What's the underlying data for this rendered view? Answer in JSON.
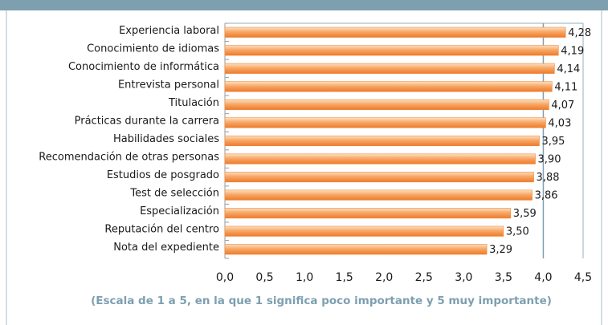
{
  "chart_data": {
    "type": "bar",
    "orientation": "horizontal",
    "caption": "(Escala de 1 a 5, en la que 1 significa poco importante y 5 muy importante)",
    "categories": [
      "Experiencia laboral",
      "Conocimiento de idiomas",
      "Conocimiento de informática",
      "Entrevista personal",
      "Titulación",
      "Prácticas durante la carrera",
      "Habilidades sociales",
      "Recomendación de otras personas",
      "Estudios de posgrado",
      "Test de selección",
      "Especialización",
      "Reputación del centro",
      "Nota del expediente"
    ],
    "values": [
      4.28,
      4.19,
      4.14,
      4.11,
      4.07,
      4.03,
      3.95,
      3.9,
      3.88,
      3.86,
      3.59,
      3.5,
      3.29
    ],
    "value_labels": [
      "4,28",
      "4,19",
      "4,14",
      "4,11",
      "4,07",
      "4,03",
      "3,95",
      "3,90",
      "3,88",
      "3,86",
      "3,59",
      "3,50",
      "3,29"
    ],
    "color": "#f08a3c",
    "xlim": [
      0,
      4.5
    ],
    "xticks": [
      {
        "value": 0,
        "label": "0,0"
      },
      {
        "value": 0.5,
        "label": "0,5"
      },
      {
        "value": 1,
        "label": "1,0"
      },
      {
        "value": 1.5,
        "label": "1,5"
      },
      {
        "value": 2,
        "label": "2,0"
      },
      {
        "value": 2.5,
        "label": "2,5"
      },
      {
        "value": 3,
        "label": "3,0"
      },
      {
        "value": 3.5,
        "label": "3,5"
      },
      {
        "value": 4,
        "label": "4,0"
      },
      {
        "value": 4.5,
        "label": "4,5"
      }
    ],
    "reference_line": 4
  }
}
